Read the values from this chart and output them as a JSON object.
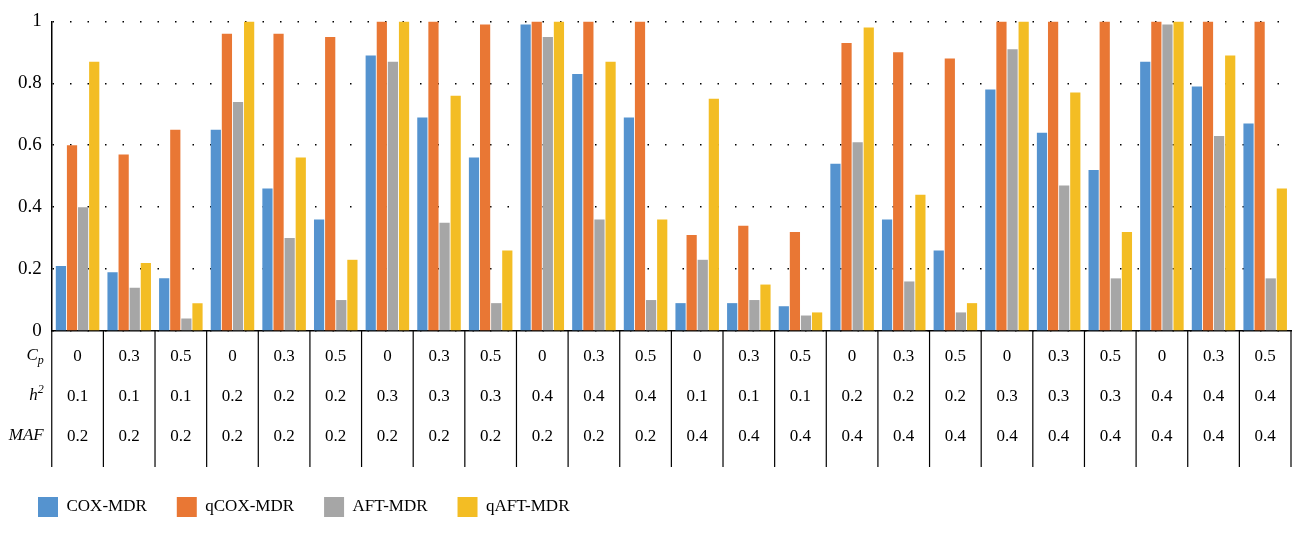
{
  "chart_data": {
    "type": "bar",
    "categories": [
      "0\n0.1\n0.2",
      "0.3\n0.1\n0.2",
      "0.5\n0.1\n0.2",
      "0\n0.2\n0.2",
      "0.3\n0.2\n0.2",
      "0.5\n0.2\n0.2",
      "0\n0.3\n0.2",
      "0.3\n0.3\n0.2",
      "0.5\n0.3\n0.2",
      "0\n0.4\n0.2",
      "0.3\n0.4\n0.2",
      "0.5\n0.4\n0.2",
      "0\n0.1\n0.4",
      "0.3\n0.1\n0.4",
      "0.5\n0.1\n0.4",
      "0\n0.2\n0.4",
      "0.3\n0.2\n0.4",
      "0.5\n0.2\n0.4",
      "0\n0.3\n0.4",
      "0.3\n0.3\n0.4",
      "0.5\n0.3\n0.4",
      "0\n0.4\n0.4",
      "0.3\n0.4\n0.4",
      "0.5\n0.4\n0.4"
    ],
    "series": [
      {
        "name": "COX-MDR",
        "color": "#5593cf",
        "values": [
          0.21,
          0.19,
          0.17,
          0.65,
          0.46,
          0.36,
          0.89,
          0.69,
          0.56,
          0.99,
          0.83,
          0.69,
          0.09,
          0.09,
          0.08,
          0.54,
          0.36,
          0.26,
          0.78,
          0.64,
          0.52,
          0.87,
          0.79,
          0.67
        ]
      },
      {
        "name": "qCOX-MDR",
        "color": "#e97734",
        "values": [
          0.6,
          0.57,
          0.65,
          0.96,
          0.96,
          0.95,
          1,
          1,
          0.99,
          1,
          1,
          1,
          0.31,
          0.34,
          0.32,
          0.93,
          0.9,
          0.88,
          1,
          1,
          1,
          1,
          1,
          1
        ]
      },
      {
        "name": "AFT-MDR",
        "color": "#a6a6a6",
        "values": [
          0.4,
          0.14,
          0.04,
          0.74,
          0.3,
          0.1,
          0.87,
          0.35,
          0.09,
          0.95,
          0.36,
          0.1,
          0.23,
          0.1,
          0.05,
          0.61,
          0.16,
          0.06,
          0.91,
          0.47,
          0.17,
          0.99,
          0.63,
          0.17
        ]
      },
      {
        "name": "qAFT-MDR",
        "color": "#f3bd24",
        "values": [
          0.87,
          0.22,
          0.09,
          1,
          0.56,
          0.23,
          1,
          0.76,
          0.26,
          1,
          0.87,
          0.36,
          0.75,
          0.15,
          0.06,
          0.98,
          0.44,
          0.09,
          1,
          0.77,
          0.32,
          1,
          0.89,
          0.46
        ]
      }
    ],
    "ylim": [
      0,
      1
    ],
    "yticks": [
      0,
      0.2,
      0.4,
      0.6,
      0.8,
      1
    ],
    "grid": "y",
    "legend": "bottom",
    "annotations": [
      "C$_{p}$",
      "h$^{2}$",
      "MAF"
    ]
  }
}
